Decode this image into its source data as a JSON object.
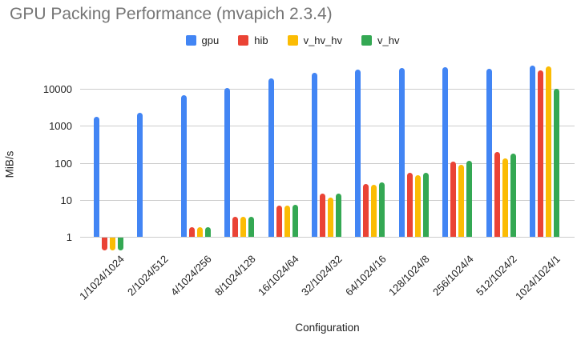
{
  "chart_data": {
    "type": "bar",
    "title": "GPU Packing Performance (mvapich 2.3.4)",
    "xlabel": "Configuration",
    "ylabel": "MiB/s",
    "y_scale": "log",
    "y_ticks": [
      1,
      10,
      100,
      1000,
      10000
    ],
    "ylim": [
      0.4,
      60000
    ],
    "grid": true,
    "legend_position": "top",
    "categories": [
      "1/1024/1024",
      "2/1024/512",
      "4/1024/256",
      "8/1024/128",
      "16/1024/64",
      "32/1024/32",
      "64/1024/16",
      "128/1024/8",
      "256/1024/4",
      "512/1024/2",
      "1024/1024/1"
    ],
    "series": [
      {
        "name": "gpu",
        "color": "#4285F4",
        "values": [
          1800,
          2300,
          7000,
          11000,
          20000,
          28000,
          35000,
          38000,
          40000,
          36000,
          45000
        ]
      },
      {
        "name": "hib",
        "color": "#EA4335",
        "values": [
          0.45,
          null,
          1.9,
          3.5,
          7,
          15,
          28,
          55,
          110,
          200,
          33000
        ]
      },
      {
        "name": "v_hv_hv",
        "color": "#FBBC04",
        "values": [
          0.45,
          null,
          1.9,
          3.5,
          7,
          12,
          26,
          48,
          90,
          135,
          41000
        ]
      },
      {
        "name": "v_hv",
        "color": "#34A853",
        "values": [
          0.45,
          null,
          1.9,
          3.6,
          7.5,
          15.5,
          31,
          55,
          115,
          185,
          10500
        ]
      }
    ]
  }
}
